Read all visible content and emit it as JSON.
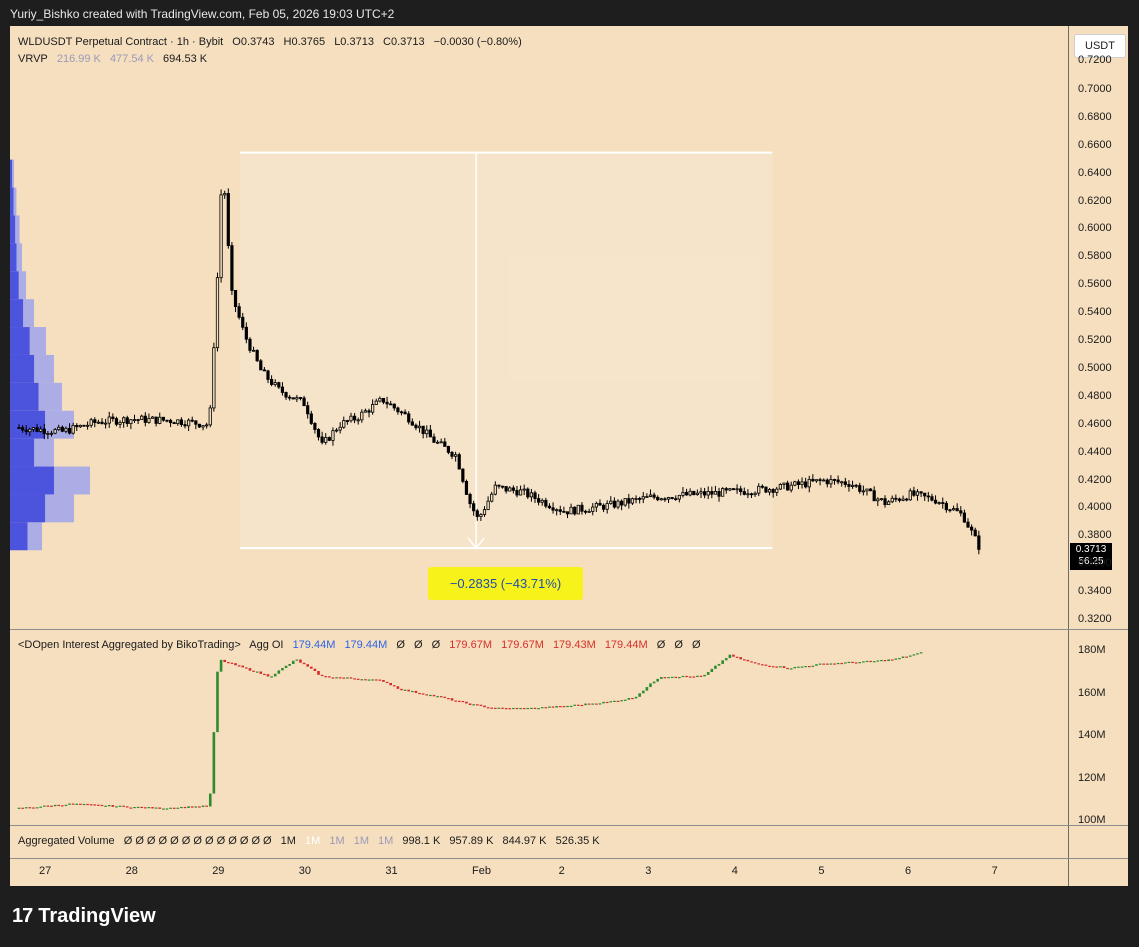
{
  "header": {
    "credit": "Yuriy_Bishko created with TradingView.com, Feb 05, 2026 19:03 UTC+2"
  },
  "main_legend": {
    "symbol": "WLDUSDT Perpetual Contract · 1h · Bybit",
    "open": "O0.3743",
    "high": "H0.3765",
    "low": "L0.3713",
    "close": "C0.3713",
    "change": "−0.0030 (−0.80%)"
  },
  "vrvp_legend": {
    "name": "VRVP",
    "v1": "216.99 K",
    "v2": "477.54 K",
    "v3": "694.53 K"
  },
  "currency": "USDT",
  "price_axis": [
    "0.7200",
    "0.7000",
    "0.6800",
    "0.6600",
    "0.6400",
    "0.6200",
    "0.6000",
    "0.5800",
    "0.5600",
    "0.5400",
    "0.5200",
    "0.5000",
    "0.4800",
    "0.4600",
    "0.4400",
    "0.4200",
    "0.4000",
    "0.3800",
    "0.3600",
    "0.3400",
    "0.3200"
  ],
  "last_price": {
    "price": "0.3713",
    "countdown": "56:25"
  },
  "measure": {
    "label": "−0.2835 (−43.71%)"
  },
  "oi_legend": {
    "name": "<DOpen Interest Aggregated by BikoTrading>",
    "short": "Agg OI",
    "v1": "179.44M",
    "v2": "179.44M",
    "z1": "Ø",
    "z2": "Ø",
    "z3": "Ø",
    "v3": "179.67M",
    "v4": "179.67M",
    "v5": "179.43M",
    "v6": "179.44M",
    "z4": "Ø",
    "z5": "Ø",
    "z6": "Ø"
  },
  "oi_axis": [
    "180M",
    "160M",
    "140M",
    "120M",
    "100M"
  ],
  "vol_legend": {
    "name": "Aggregated Volume",
    "zeros": [
      "Ø",
      "Ø",
      "Ø",
      "Ø",
      "Ø",
      "Ø",
      "Ø",
      "Ø",
      "Ø",
      "Ø",
      "Ø",
      "Ø",
      "Ø"
    ],
    "m1": "1M",
    "m2": "1M",
    "m3": "1M",
    "m4": "1M",
    "m5": "1M",
    "n1": "998.1 K",
    "n2": "957.89 K",
    "n3": "844.97 K",
    "n4": "526.35 K"
  },
  "time_axis": [
    "27",
    "28",
    "29",
    "30",
    "31",
    "Feb",
    "2",
    "3",
    "4",
    "5",
    "6",
    "7"
  ],
  "colors": {
    "background": "#f5dfbf",
    "candle": "#000000",
    "oi_up": "#2e8b2e",
    "oi_down": "#d62a2a",
    "vrvp": "#3a44e0",
    "measure_badge": "#f7f21a"
  },
  "chart_data": [
    {
      "type": "candlestick",
      "name": "WLDUSDT Perpetual Contract · 1h · Bybit",
      "ylim": [
        0.31,
        0.73
      ],
      "x_ticks": [
        "27",
        "28",
        "29",
        "30",
        "31",
        "Feb",
        "2",
        "3",
        "4",
        "5",
        "6",
        "7"
      ],
      "ohlc": {
        "open": 0.3743,
        "high": 0.3765,
        "low": 0.3713,
        "close": 0.3713
      },
      "close_path": [
        [
          26.7,
          0.458
        ],
        [
          27.2,
          0.455
        ],
        [
          27.6,
          0.462
        ],
        [
          28.0,
          0.464
        ],
        [
          28.5,
          0.463
        ],
        [
          28.9,
          0.46
        ],
        [
          29.0,
          0.575
        ],
        [
          29.05,
          0.65
        ],
        [
          29.15,
          0.555
        ],
        [
          29.3,
          0.525
        ],
        [
          29.5,
          0.498
        ],
        [
          29.7,
          0.485
        ],
        [
          30.0,
          0.475
        ],
        [
          30.2,
          0.445
        ],
        [
          30.4,
          0.46
        ],
        [
          30.6,
          0.465
        ],
        [
          30.9,
          0.478
        ],
        [
          31.2,
          0.465
        ],
        [
          31.5,
          0.448
        ],
        [
          31.75,
          0.438
        ],
        [
          31.9,
          0.405
        ],
        [
          32.0,
          0.392
        ],
        [
          32.2,
          0.415
        ],
        [
          32.5,
          0.412
        ],
        [
          33.0,
          0.398
        ],
        [
          33.5,
          0.402
        ],
        [
          34.0,
          0.408
        ],
        [
          34.5,
          0.41
        ],
        [
          35.0,
          0.412
        ],
        [
          35.5,
          0.415
        ],
        [
          36.0,
          0.42
        ],
        [
          36.3,
          0.418
        ],
        [
          36.7,
          0.404
        ],
        [
          37.0,
          0.41
        ],
        [
          37.3,
          0.406
        ],
        [
          37.6,
          0.395
        ],
        [
          37.8,
          0.371
        ]
      ]
    },
    {
      "type": "line",
      "name": "Agg OI",
      "unit": "M",
      "ylim": [
        100,
        180
      ],
      "x_ticks": [
        "27",
        "28",
        "29",
        "30",
        "31",
        "Feb",
        "2",
        "3",
        "4",
        "5",
        "6",
        "7"
      ],
      "points": [
        [
          26.7,
          106
        ],
        [
          27.3,
          108
        ],
        [
          27.8,
          107
        ],
        [
          28.3,
          106
        ],
        [
          28.9,
          107
        ],
        [
          29.0,
          176
        ],
        [
          29.3,
          172
        ],
        [
          29.6,
          168
        ],
        [
          29.9,
          176
        ],
        [
          30.2,
          168
        ],
        [
          30.6,
          167
        ],
        [
          30.9,
          166
        ],
        [
          31.1,
          162
        ],
        [
          31.6,
          158
        ],
        [
          31.9,
          155
        ],
        [
          32.2,
          153
        ],
        [
          32.6,
          153
        ],
        [
          33.0,
          154
        ],
        [
          33.5,
          156
        ],
        [
          33.8,
          158
        ],
        [
          34.1,
          168
        ],
        [
          34.6,
          168
        ],
        [
          34.9,
          178
        ],
        [
          35.2,
          174
        ],
        [
          35.6,
          172
        ],
        [
          36.0,
          174
        ],
        [
          36.5,
          175
        ],
        [
          36.8,
          176
        ],
        [
          37.0,
          178
        ],
        [
          37.15,
          179.4
        ]
      ]
    },
    {
      "type": "bar",
      "name": "VRVP",
      "orientation": "horizontal",
      "note": "volume-by-price profile",
      "price_levels": [
        0.64,
        0.62,
        0.6,
        0.58,
        0.56,
        0.54,
        0.52,
        0.5,
        0.48,
        0.46,
        0.44,
        0.42,
        0.4,
        0.38
      ],
      "relative_volume": [
        0.05,
        0.08,
        0.12,
        0.15,
        0.2,
        0.3,
        0.45,
        0.55,
        0.65,
        0.8,
        0.55,
        1.0,
        0.8,
        0.4
      ]
    }
  ]
}
